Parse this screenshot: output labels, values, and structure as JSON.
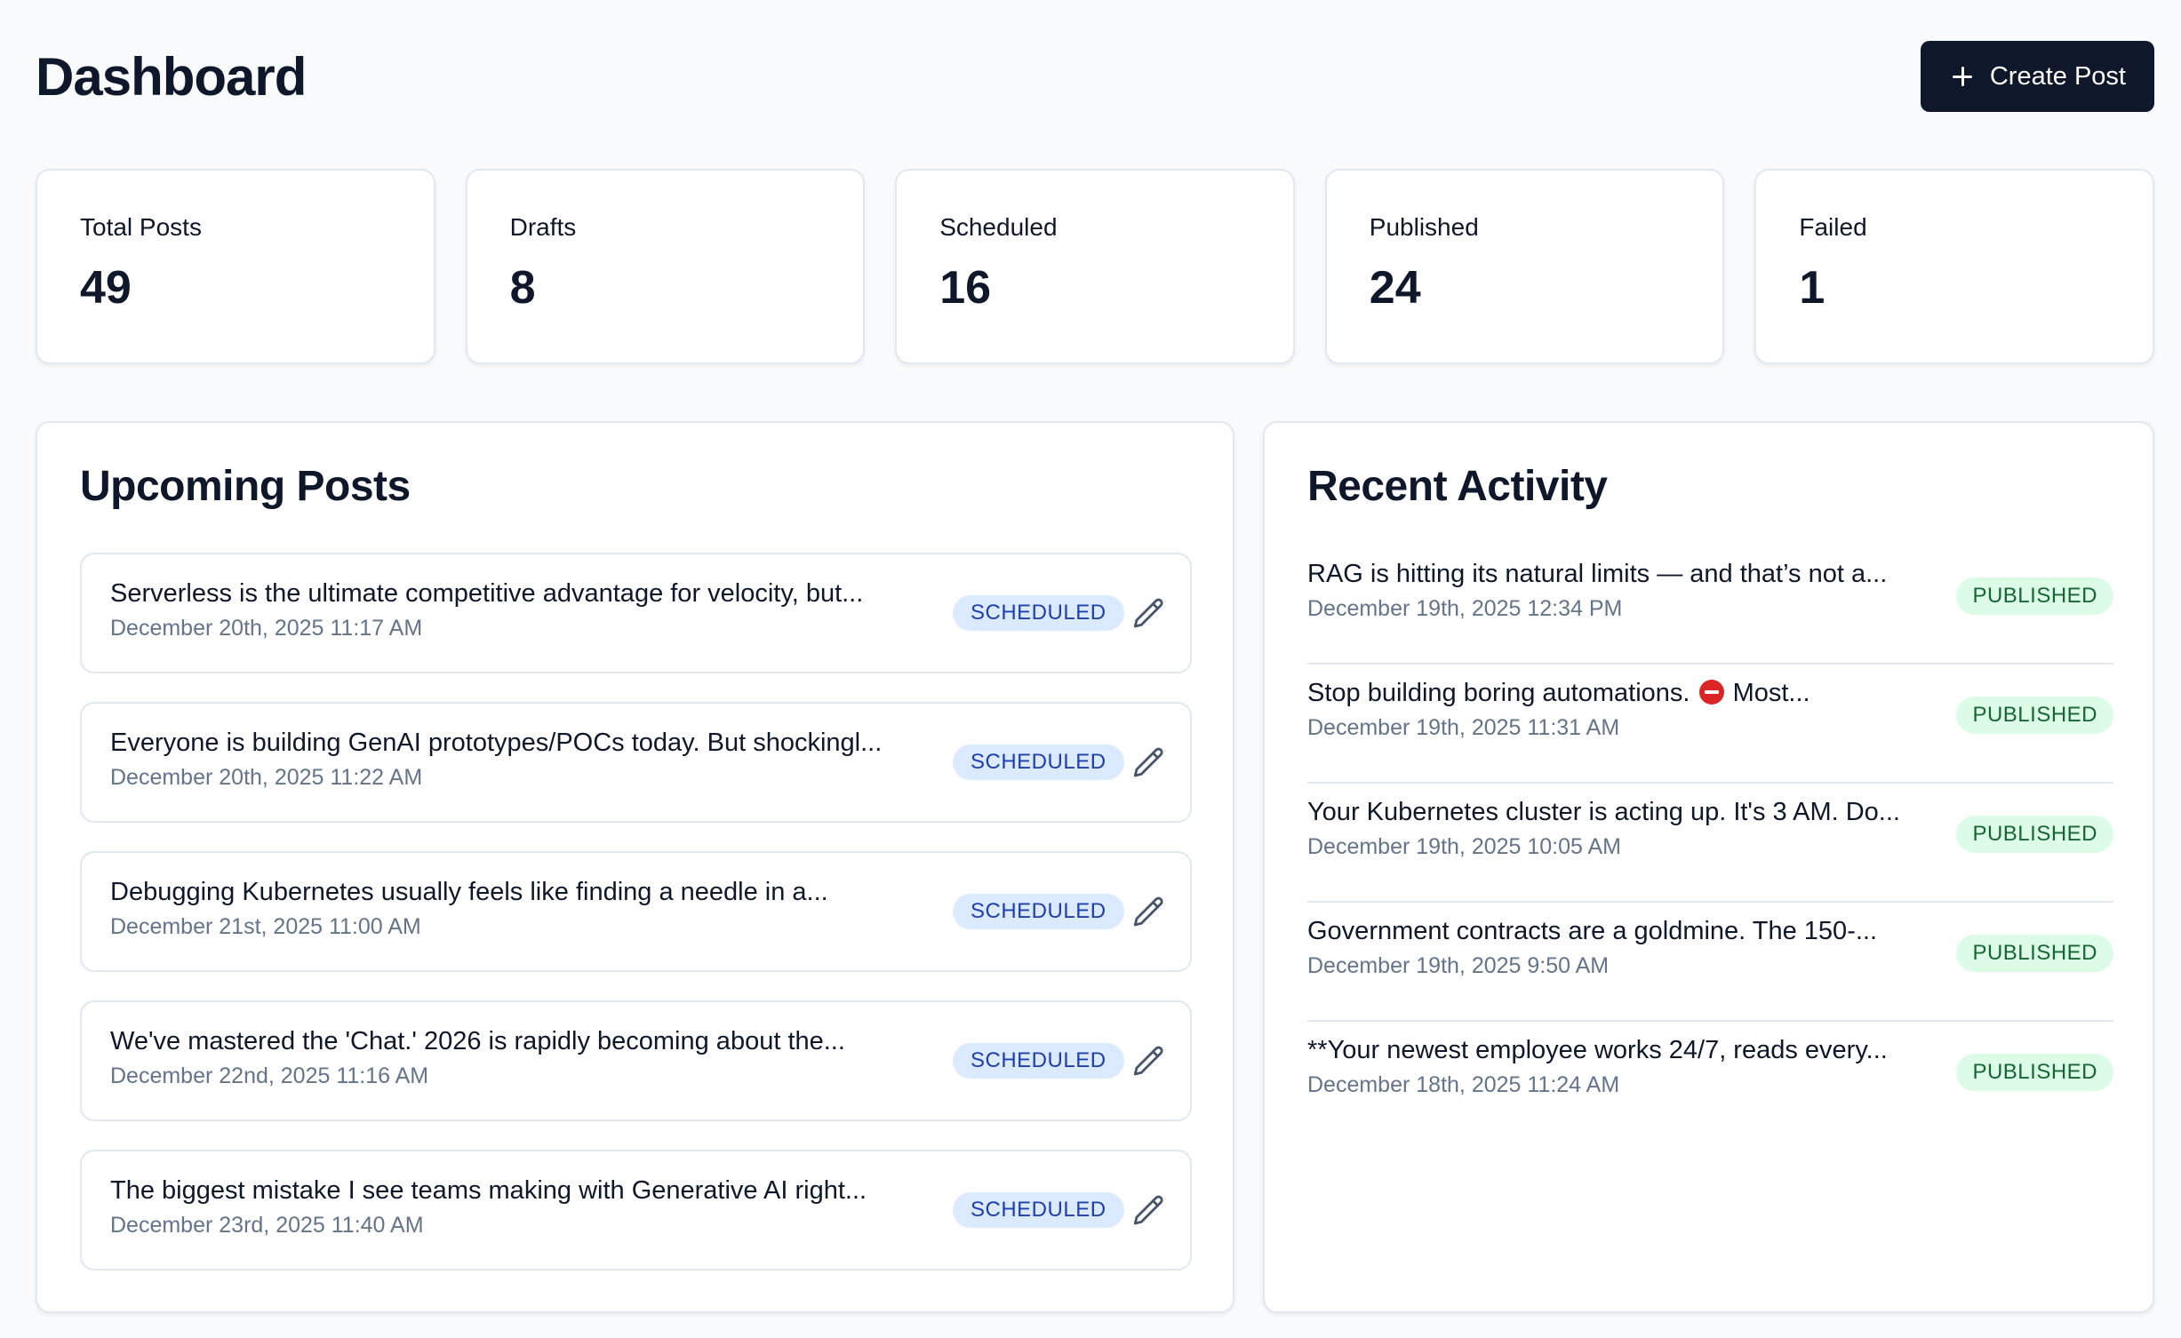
{
  "header": {
    "title": "Dashboard",
    "create_button_label": "Create Post"
  },
  "stats": [
    {
      "label": "Total Posts",
      "value": "49"
    },
    {
      "label": "Drafts",
      "value": "8"
    },
    {
      "label": "Scheduled",
      "value": "16"
    },
    {
      "label": "Published",
      "value": "24"
    },
    {
      "label": "Failed",
      "value": "1"
    }
  ],
  "upcoming": {
    "title": "Upcoming Posts",
    "posts": [
      {
        "title": "Serverless is the ultimate competitive advantage for velocity, but...",
        "date": "December 20th, 2025 11:17 AM",
        "status": "SCHEDULED"
      },
      {
        "title": "Everyone is building GenAI prototypes/POCs today. But shockingl...",
        "date": "December 20th, 2025 11:22 AM",
        "status": "SCHEDULED"
      },
      {
        "title": "Debugging Kubernetes usually feels like finding a needle in a...",
        "date": "December 21st, 2025 11:00 AM",
        "status": "SCHEDULED"
      },
      {
        "title": "We've mastered the 'Chat.' 2026 is rapidly becoming about the...",
        "date": "December 22nd, 2025 11:16 AM",
        "status": "SCHEDULED"
      },
      {
        "title": "The biggest mistake I see teams making with Generative AI right...",
        "date": "December 23rd, 2025 11:40 AM",
        "status": "SCHEDULED"
      }
    ]
  },
  "activity": {
    "title": "Recent Activity",
    "items": [
      {
        "title": "RAG is hitting its natural limits — and that’s not a...",
        "date": "December 19th, 2025 12:34 PM",
        "status": "PUBLISHED"
      },
      {
        "title_before": "Stop building boring automations. ",
        "title_after": " Most...",
        "emoji": "stop-sign-icon",
        "date": "December 19th, 2025 11:31 AM",
        "status": "PUBLISHED"
      },
      {
        "title": "Your Kubernetes cluster is acting up. It's 3 AM. Do...",
        "date": "December 19th, 2025 10:05 AM",
        "status": "PUBLISHED"
      },
      {
        "title": "Government contracts are a goldmine. The 150-...",
        "date": "December 19th, 2025 9:50 AM",
        "status": "PUBLISHED"
      },
      {
        "title": "**Your newest employee works 24/7, reads every...",
        "date": "December 18th, 2025 11:24 AM",
        "status": "PUBLISHED"
      }
    ]
  },
  "colors": {
    "background": "#f8fafc",
    "primary_button": "#0f172a",
    "scheduled_badge_bg": "#dbeafe",
    "scheduled_badge_text": "#1e40af",
    "published_badge_bg": "#dcfce7",
    "published_badge_text": "#166534"
  }
}
